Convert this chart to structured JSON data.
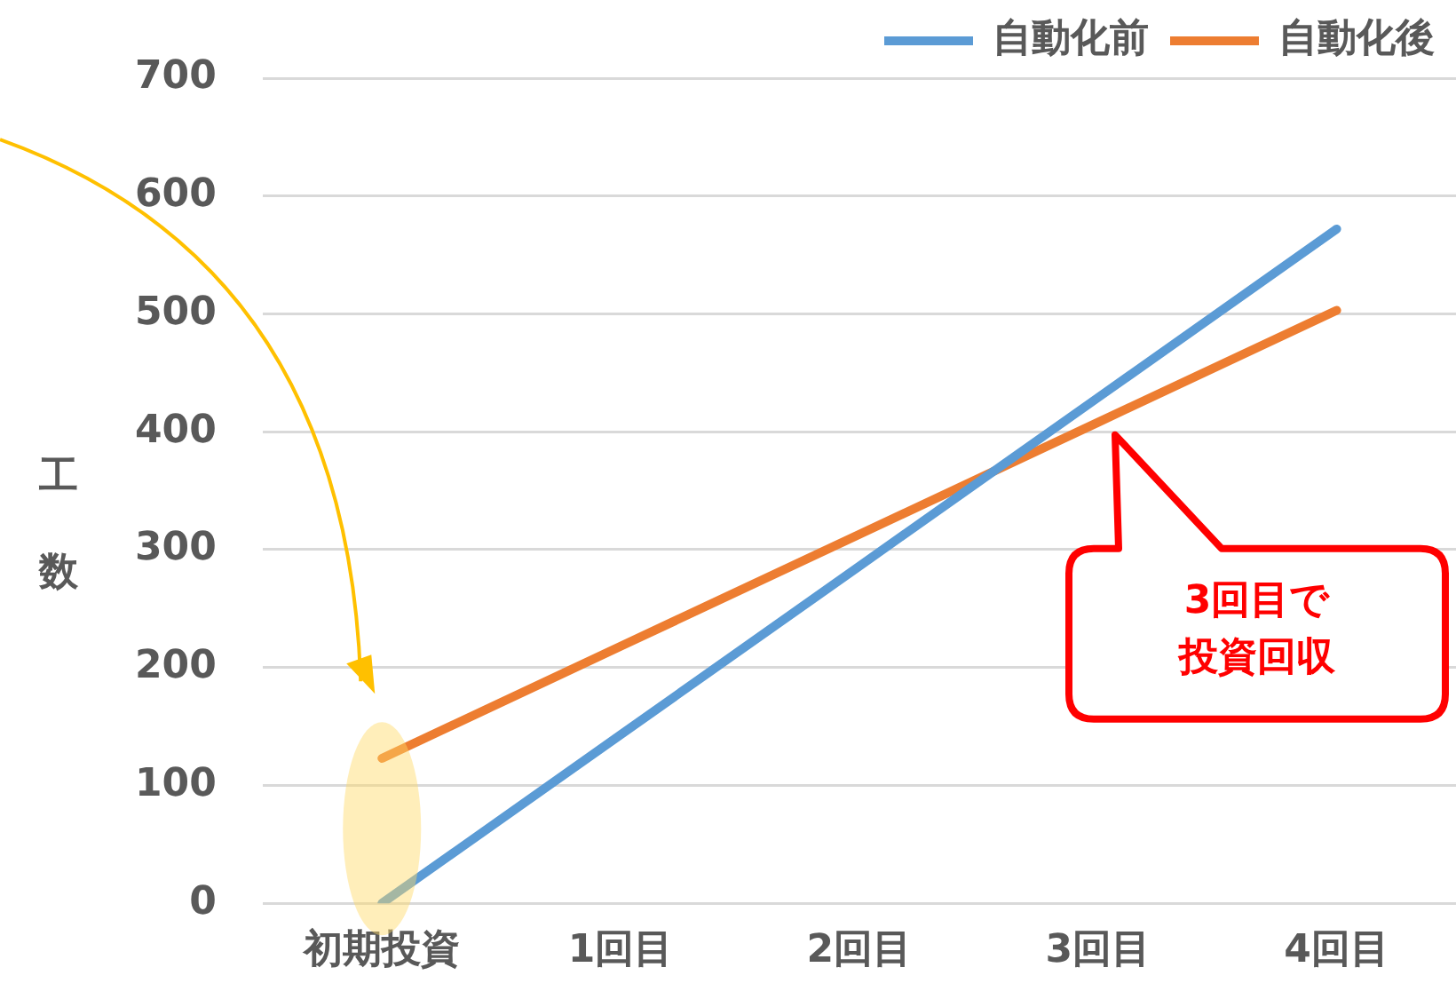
{
  "chart_data": {
    "type": "line",
    "ylabel": "工数",
    "categories": [
      "初期投資",
      "1回目",
      "2回目",
      "3回目",
      "4回目"
    ],
    "series": [
      {
        "name": "自動化前",
        "color": "#5b9bd5",
        "values": [
          0,
          143,
          286,
          429,
          572
        ]
      },
      {
        "name": "自動化後",
        "color": "#ed7d31",
        "values": [
          123,
          218,
          313,
          408,
          503
        ]
      }
    ],
    "ylim": [
      0,
      700
    ],
    "yticks": [
      0,
      100,
      200,
      300,
      400,
      500,
      600,
      700
    ],
    "grid": "y",
    "legend": "top right",
    "marker": "none",
    "line_style": "solid",
    "annotations": [
      "3回目で投資回収"
    ]
  }
}
